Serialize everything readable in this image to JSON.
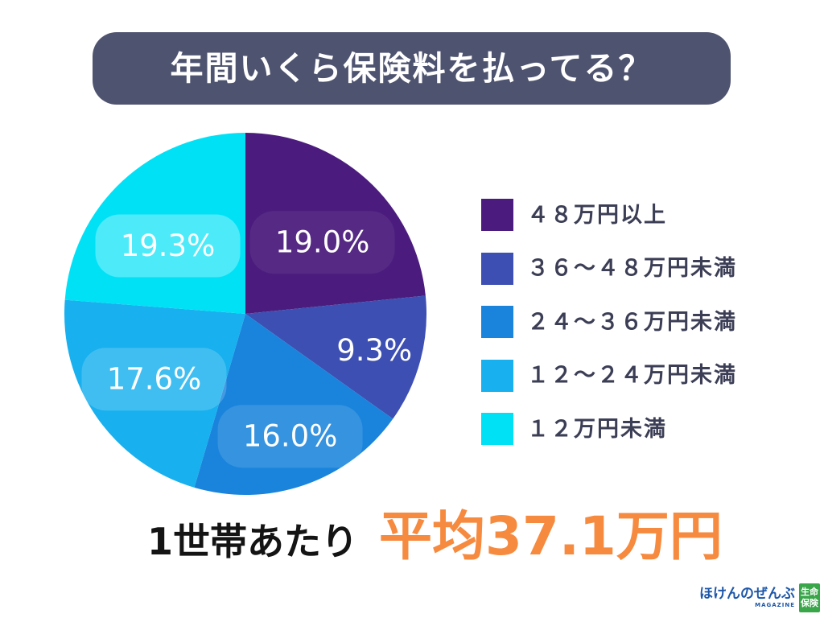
{
  "chart_data": {
    "type": "pie",
    "title": "年間いくら保険料を払ってる？",
    "categories": [
      "４８万円以上",
      "３６～４８万円未満",
      "２４～３６万円未満",
      "１２～２４万円未満",
      "１２万円未満"
    ],
    "values": [
      19.0,
      9.3,
      16.0,
      17.6,
      19.3
    ],
    "data_labels": [
      "19.0%",
      "9.3%",
      "16.0%",
      "17.6%",
      "19.3%"
    ],
    "colors": [
      "#4b1c7d",
      "#3d4fb2",
      "#1a84dc",
      "#18b0ee",
      "#00e1f6"
    ],
    "legend": "right"
  },
  "summary": {
    "prefix": "1世帯あたり",
    "highlight": "平均37.1万円"
  },
  "colors": {
    "banner": "#4e536f",
    "highlight": "#f68a3e",
    "legend_text": "#3b3e55"
  },
  "logo": {
    "name": "ほけんのぜんぶ",
    "sub": "MAGAZINE",
    "badge_top": "生命",
    "badge_bottom": "保険",
    "badge_color": "#3aa64a"
  }
}
